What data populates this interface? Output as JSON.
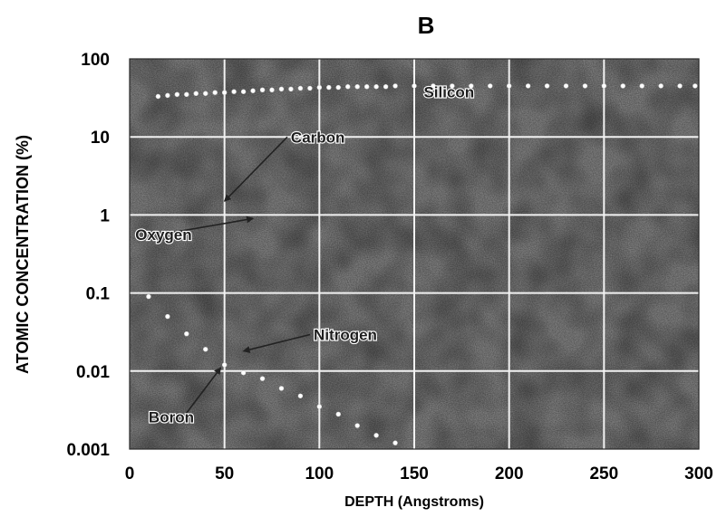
{
  "chart_data": {
    "type": "scatter",
    "panel_label": "B",
    "xlabel": "DEPTH (Angstroms)",
    "ylabel": "ATOMIC CONCENTRATION (%)",
    "xlim": [
      0,
      300
    ],
    "ylim": [
      0.001,
      100
    ],
    "yscale": "log",
    "grid": true,
    "x_ticks": [
      0,
      50,
      100,
      150,
      200,
      250,
      300
    ],
    "x_tick_labels": [
      "0",
      "50",
      "100",
      "150",
      "200",
      "250",
      "300"
    ],
    "y_ticks": [
      100,
      10,
      1,
      0.1,
      0.01,
      0.001
    ],
    "y_tick_labels": [
      "100",
      "10",
      "1",
      "0.1",
      "0.01",
      "0.001"
    ],
    "series": [
      {
        "name": "Silicon",
        "label_at": [
          155,
          32
        ],
        "x": [
          15,
          20,
          25,
          30,
          35,
          40,
          45,
          50,
          55,
          60,
          65,
          70,
          75,
          80,
          85,
          90,
          95,
          100,
          105,
          110,
          115,
          120,
          125,
          130,
          135,
          140,
          150,
          160,
          170,
          180,
          190,
          200,
          210,
          220,
          230,
          240,
          250,
          260,
          270,
          280,
          290,
          298
        ],
        "y": [
          33,
          34,
          35,
          35,
          36,
          36,
          37,
          37,
          38,
          38,
          39,
          40,
          40,
          41,
          41,
          42,
          42,
          43,
          43,
          43,
          44,
          44,
          44,
          44,
          44,
          45,
          45,
          45,
          45,
          45,
          45,
          45,
          45,
          45,
          45,
          45,
          45,
          45,
          45,
          45,
          45,
          45
        ]
      },
      {
        "name": "Carbon",
        "label_at": [
          85,
          8.5
        ],
        "arrow_to": [
          50,
          1.5
        ],
        "x": [],
        "y": []
      },
      {
        "name": "Oxygen",
        "label_at": [
          3,
          0.48
        ],
        "arrow_to": [
          65,
          0.9
        ],
        "x": [],
        "y": []
      },
      {
        "name": "Nitrogen",
        "label_at": [
          97,
          0.025
        ],
        "arrow_to": [
          60,
          0.018
        ],
        "x": [
          10,
          20,
          30,
          40,
          50,
          60,
          70,
          80,
          90,
          100,
          110,
          120,
          130,
          140
        ],
        "y": [
          0.09,
          0.05,
          0.03,
          0.019,
          0.012,
          0.0095,
          0.008,
          0.006,
          0.0048,
          0.0035,
          0.0028,
          0.002,
          0.0015,
          0.0012
        ]
      },
      {
        "name": "Boron",
        "label_at": [
          10,
          0.0022
        ],
        "arrow_to": [
          48,
          0.011
        ],
        "x": [],
        "y": []
      }
    ],
    "colors": {
      "plot_background": "#8a8a8a",
      "grid": "#f2f2f2",
      "markers": "#ffffff",
      "labels": "#1e1e1e",
      "arrows": "#222222"
    }
  }
}
